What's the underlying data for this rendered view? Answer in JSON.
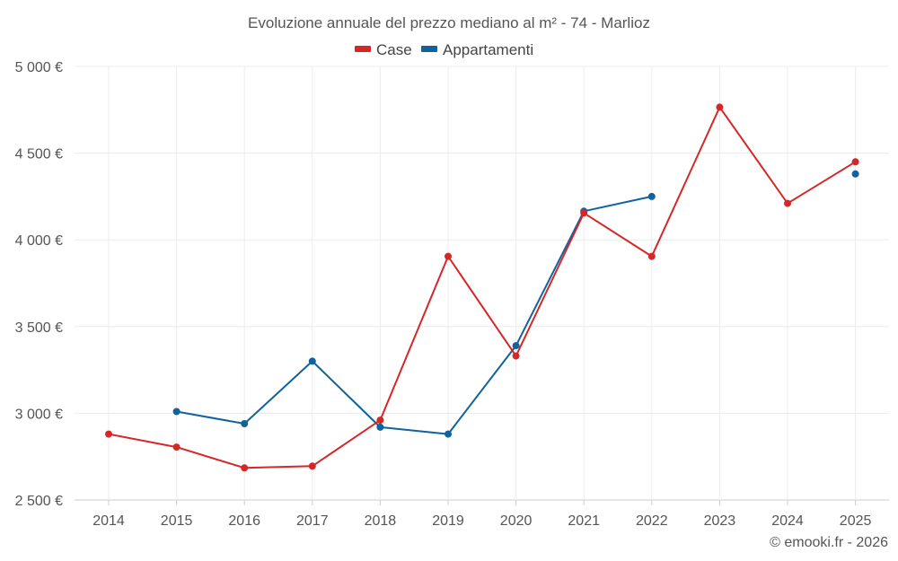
{
  "chart_data": {
    "type": "line",
    "title": "Evoluzione annuale del prezzo mediano al m² - 74 - Marlioz",
    "categories": [
      "2014",
      "2015",
      "2016",
      "2017",
      "2018",
      "2019",
      "2020",
      "2021",
      "2022",
      "2023",
      "2024",
      "2025"
    ],
    "ylim": [
      2500,
      5000
    ],
    "yticks": [
      5000,
      4500,
      4000,
      3500,
      3000,
      2500
    ],
    "ytick_labels": [
      "5 000 €",
      "4 500 €",
      "4 000 €",
      "3 500 €",
      "3 000 €",
      "2 500 €"
    ],
    "xlabel": "",
    "ylabel": "",
    "grid": true,
    "legend_position": "top-center",
    "series": [
      {
        "name": "Case",
        "color": "#d62728",
        "values": [
          2880,
          2805,
          2685,
          2695,
          2960,
          3905,
          3330,
          4155,
          3905,
          4765,
          4210,
          4450
        ]
      },
      {
        "name": "Appartamenti",
        "color": "#10639c",
        "values": [
          null,
          3010,
          2940,
          3300,
          2920,
          2880,
          3390,
          4165,
          4250,
          null,
          null,
          4380
        ]
      }
    ]
  },
  "credit": "© emooki.fr - 2026"
}
